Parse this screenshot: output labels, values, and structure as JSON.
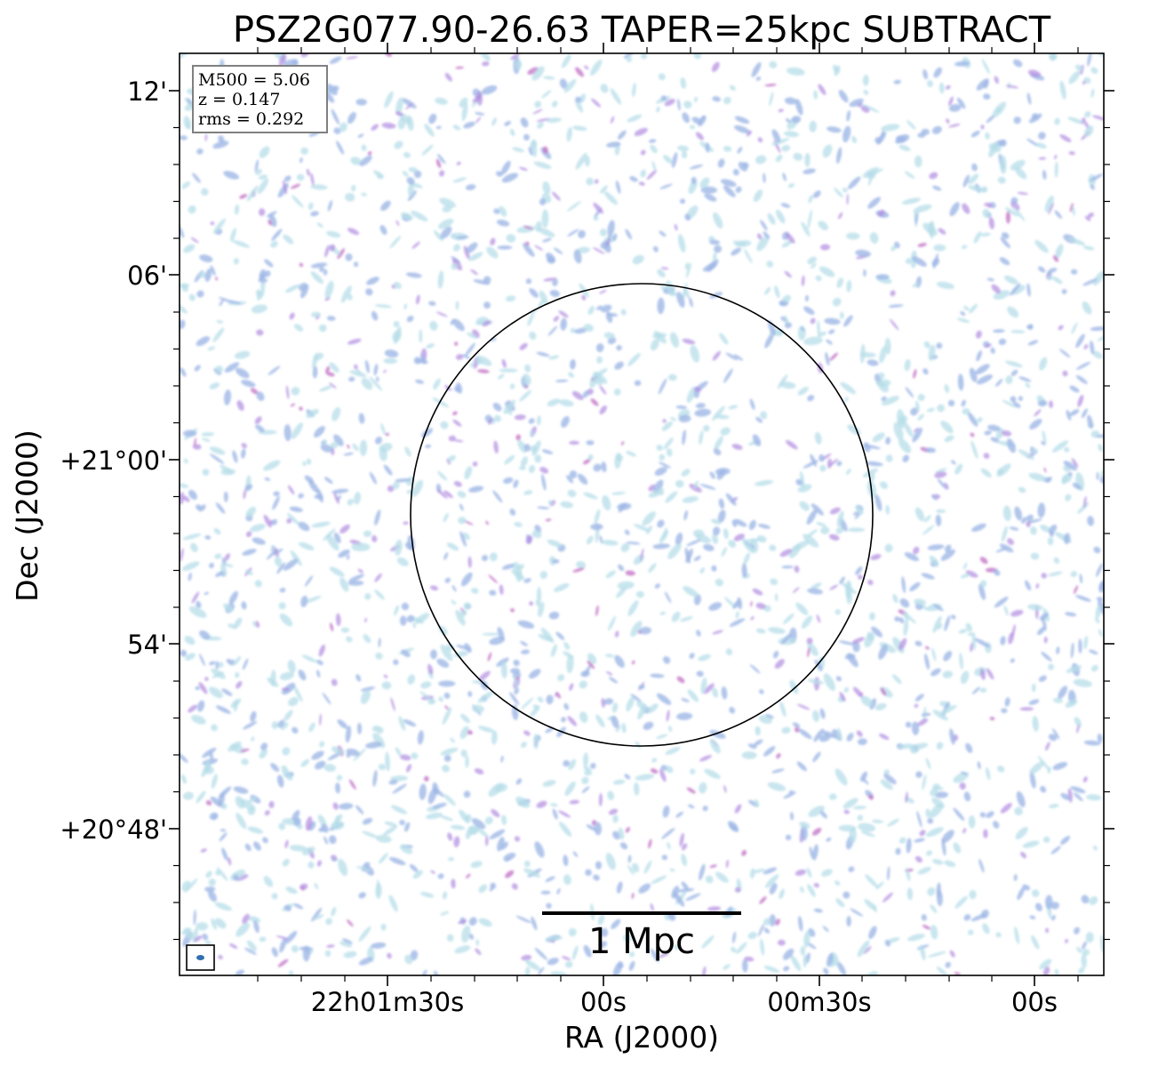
{
  "figure": {
    "title": "PSZ2G077.90-26.63 TAPER=25kpc SUBTRACT",
    "xlabel": "RA (J2000)",
    "ylabel": "Dec (J2000)",
    "x_ticks": [
      "22h01m30s",
      "00s",
      "00m30s",
      "00s"
    ],
    "y_ticks": [
      "12'",
      "06'",
      "+21°00'",
      "54'",
      "+20°48'"
    ],
    "info_box": [
      "M500 = 5.06",
      "z = 0.147",
      "rms = 0.292"
    ],
    "scale_bar_label": "1 Mpc",
    "colors": {
      "noise_light": "#b7dde8",
      "noise_mid": "#9fb8e6",
      "noise_strong": "#b08ae0",
      "noise_peak": "#c478c8",
      "beam": "#2f6fb0",
      "frame": "#000000"
    }
  }
}
